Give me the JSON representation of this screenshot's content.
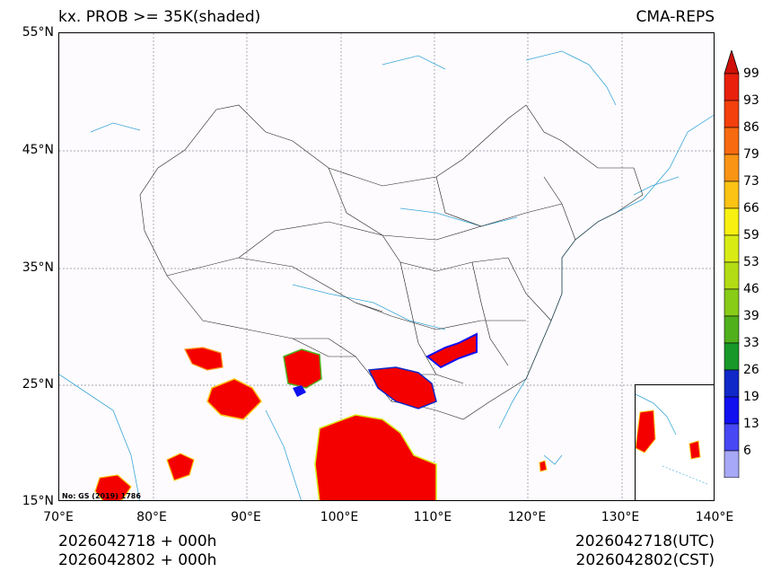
{
  "title": {
    "left": "kx. PROB >= 35K(shaded)",
    "right": "CMA-REPS"
  },
  "axes": {
    "lat_labels": [
      "55°N",
      "45°N",
      "35°N",
      "25°N",
      "15°N"
    ],
    "lon_labels": [
      "70°E",
      "80°E",
      "90°E",
      "100°E",
      "110°E",
      "120°E",
      "130°E",
      "140°E"
    ]
  },
  "map_note": "No: GS (2019) 1786",
  "footer": {
    "left_line1": "2026042718  +  000h",
    "left_line2": "2026042802  +  000h",
    "right_line1": "2026042718(UTC)",
    "right_line2": "2026042802(CST)"
  },
  "colorbar": {
    "labels": [
      "99",
      "93",
      "86",
      "79",
      "73",
      "66",
      "59",
      "53",
      "46",
      "39",
      "33",
      "26",
      "19",
      "13",
      "6"
    ],
    "colors": [
      "#e8200c",
      "#f4400c",
      "#f86a10",
      "#fa9414",
      "#fcc314",
      "#f8f010",
      "#d8ec14",
      "#b4dc14",
      "#88cc18",
      "#50b01c",
      "#189828",
      "#1028c8",
      "#1010f0",
      "#4848f4",
      "#a8a8f8"
    ],
    "top_arrow": "#d01008",
    "bottom_arrow": "#ffffff"
  },
  "colors": {
    "shade_red": "#f50000",
    "coast": "#3aa6d8",
    "border": "#222222"
  }
}
